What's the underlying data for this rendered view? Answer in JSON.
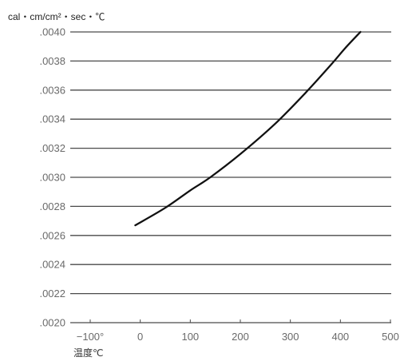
{
  "chart_data": {
    "type": "line",
    "ylabel": "cal・cm/cm²・sec・℃",
    "xlabel": "温度℃",
    "xlim": [
      -100,
      500
    ],
    "ylim": [
      0.002,
      0.004
    ],
    "x_ticks": [
      -100,
      0,
      100,
      200,
      300,
      400,
      500
    ],
    "x_tick_labels": [
      "−100°",
      "0",
      "100",
      "200",
      "300",
      "400",
      "500"
    ],
    "y_ticks": [
      0.002,
      0.0022,
      0.0024,
      0.0026,
      0.0028,
      0.003,
      0.0032,
      0.0034,
      0.0036,
      0.0038,
      0.004
    ],
    "y_tick_labels": [
      ".0020",
      ".0022",
      ".0024",
      ".0026",
      ".0028",
      ".0030",
      ".0032",
      ".0034",
      ".0036",
      ".0038",
      ".0040"
    ],
    "grid": true,
    "series": [
      {
        "x": [
          -10,
          50,
          100,
          140,
          200,
          270,
          330,
          380,
          410,
          440
        ],
        "y": [
          0.00267,
          0.00279,
          0.00291,
          0.003,
          0.00316,
          0.00337,
          0.00358,
          0.00377,
          0.00389,
          0.004
        ]
      }
    ]
  },
  "colors": {
    "curve": "#111111",
    "grid": "#4a4a4a",
    "tick_text": "#6a6a6a"
  }
}
